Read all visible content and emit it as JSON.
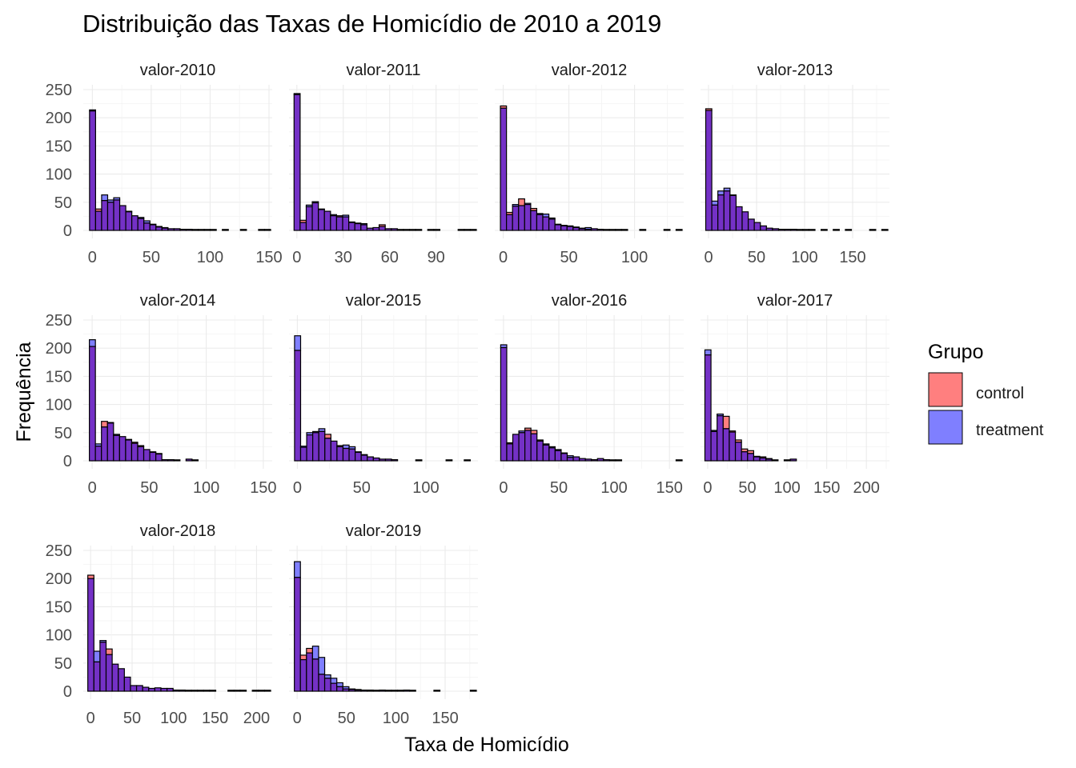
{
  "chart_data": {
    "type": "bar",
    "title": "Distribuição das Taxas de Homicídio de 2010 a 2019",
    "xlabel": "Taxa de Homicídio",
    "ylabel": "Frequência",
    "legend": {
      "title": "Grupo",
      "position": "right",
      "items": [
        {
          "name": "control",
          "color": "#FF7F7F"
        },
        {
          "name": "treatment",
          "color": "#7F7FFF"
        }
      ]
    },
    "overlap_color": "#7431C6",
    "grid": true,
    "ylim": [
      0,
      250
    ],
    "y_ticks": [
      0,
      50,
      100,
      150,
      200,
      250
    ],
    "bins_per_panel": 30,
    "panels": [
      {
        "label": "valor-2010",
        "x_ticks": [
          0,
          50,
          100,
          150
        ],
        "xlim": [
          -5,
          150
        ],
        "control": [
          212,
          38,
          53,
          50,
          54,
          44,
          34,
          26,
          21,
          13,
          10,
          6,
          4,
          3,
          3,
          2,
          2,
          1,
          1,
          1,
          1,
          0,
          1,
          0,
          0,
          1,
          0,
          0,
          1,
          1
        ],
        "treatment": [
          214,
          34,
          63,
          54,
          58,
          44,
          33,
          26,
          23,
          17,
          11,
          7,
          5,
          3,
          3,
          2,
          2,
          1,
          1,
          1,
          1,
          0,
          1,
          0,
          0,
          1,
          0,
          0,
          1,
          1
        ]
      },
      {
        "label": "valor-2011",
        "x_ticks": [
          0,
          30,
          60,
          90
        ],
        "xlim": [
          -3,
          115
        ],
        "control": [
          241,
          18,
          42,
          49,
          38,
          34,
          26,
          26,
          24,
          15,
          12,
          10,
          4,
          5,
          10,
          3,
          3,
          1,
          1,
          1,
          1,
          0,
          1,
          1,
          0,
          0,
          0,
          1,
          1,
          1
        ],
        "treatment": [
          243,
          14,
          45,
          51,
          37,
          34,
          28,
          24,
          27,
          14,
          13,
          12,
          4,
          5,
          7,
          3,
          3,
          1,
          1,
          1,
          1,
          0,
          1,
          1,
          0,
          0,
          0,
          1,
          1,
          1
        ],
        "x_scale_note": "axis 0-110"
      },
      {
        "label": "valor-2012",
        "x_ticks": [
          0,
          50,
          100
        ],
        "xlim": [
          -4,
          135
        ],
        "control": [
          221,
          32,
          43,
          56,
          46,
          39,
          28,
          24,
          20,
          10,
          8,
          7,
          5,
          3,
          2,
          3,
          2,
          1,
          1,
          1,
          1,
          0,
          0,
          1,
          0,
          0,
          0,
          1,
          0,
          1
        ],
        "treatment": [
          217,
          28,
          46,
          44,
          48,
          35,
          30,
          29,
          22,
          11,
          9,
          8,
          6,
          4,
          5,
          3,
          2,
          1,
          1,
          1,
          1,
          0,
          0,
          1,
          0,
          0,
          0,
          1,
          0,
          1
        ]
      },
      {
        "label": "valor-2013",
        "x_ticks": [
          0,
          50,
          100,
          150
        ],
        "xlim": [
          -5,
          185
        ],
        "control": [
          216,
          45,
          63,
          70,
          63,
          42,
          33,
          20,
          14,
          8,
          4,
          3,
          2,
          2,
          2,
          1,
          1,
          1,
          0,
          1,
          0,
          1,
          0,
          1,
          0,
          0,
          0,
          1,
          0,
          1
        ],
        "treatment": [
          213,
          52,
          70,
          75,
          62,
          42,
          33,
          20,
          14,
          8,
          4,
          3,
          2,
          2,
          2,
          1,
          1,
          1,
          0,
          1,
          0,
          1,
          0,
          1,
          0,
          0,
          0,
          1,
          0,
          1
        ]
      },
      {
        "label": "valor-2014",
        "x_ticks": [
          0,
          50,
          100,
          150
        ],
        "xlim": [
          -5,
          155
        ],
        "control": [
          203,
          26,
          70,
          67,
          45,
          43,
          38,
          33,
          27,
          20,
          15,
          13,
          2,
          2,
          1,
          0,
          3,
          1,
          0,
          0,
          0,
          0,
          0,
          0,
          0,
          0,
          0,
          0,
          0,
          0
        ],
        "treatment": [
          215,
          30,
          60,
          68,
          47,
          43,
          37,
          31,
          25,
          20,
          16,
          12,
          2,
          2,
          1,
          0,
          3,
          1,
          0,
          0,
          0,
          0,
          0,
          0,
          0,
          0,
          0,
          0,
          0,
          0
        ],
        "x_scale_note": "axis 0-150"
      },
      {
        "label": "valor-2015",
        "x_ticks": [
          0,
          50,
          100
        ],
        "xlim": [
          -4,
          138
        ],
        "control": [
          196,
          24,
          46,
          50,
          52,
          47,
          35,
          27,
          22,
          21,
          16,
          11,
          7,
          5,
          3,
          3,
          2,
          0,
          0,
          0,
          1,
          0,
          0,
          0,
          0,
          1,
          0,
          0,
          1,
          0
        ],
        "treatment": [
          222,
          26,
          50,
          52,
          57,
          40,
          35,
          25,
          28,
          25,
          15,
          10,
          7,
          5,
          3,
          3,
          2,
          0,
          0,
          0,
          1,
          0,
          0,
          0,
          0,
          1,
          0,
          0,
          1,
          0
        ]
      },
      {
        "label": "valor-2016",
        "x_ticks": [
          0,
          50,
          100,
          150
        ],
        "xlim": [
          -5,
          160
        ],
        "control": [
          201,
          32,
          47,
          50,
          58,
          54,
          37,
          28,
          23,
          18,
          13,
          6,
          7,
          4,
          3,
          2,
          4,
          2,
          1,
          1,
          0,
          0,
          0,
          0,
          0,
          0,
          0,
          0,
          0,
          1
        ],
        "treatment": [
          206,
          30,
          47,
          53,
          54,
          48,
          35,
          30,
          25,
          20,
          14,
          9,
          7,
          4,
          3,
          2,
          4,
          2,
          1,
          1,
          0,
          0,
          0,
          0,
          0,
          0,
          0,
          0,
          0,
          1
        ]
      },
      {
        "label": "valor-2017",
        "x_ticks": [
          0,
          50,
          100,
          150,
          200
        ],
        "xlim": [
          -5,
          225
        ],
        "control": [
          188,
          52,
          80,
          79,
          53,
          37,
          21,
          18,
          8,
          7,
          4,
          1,
          0,
          1,
          3,
          0,
          0,
          0,
          0,
          0,
          0,
          0,
          0,
          0,
          0,
          0,
          0,
          0,
          0,
          0
        ],
        "treatment": [
          197,
          54,
          83,
          57,
          51,
          33,
          16,
          13,
          7,
          5,
          3,
          1,
          0,
          1,
          3,
          0,
          0,
          0,
          0,
          0,
          0,
          0,
          0,
          0,
          0,
          0,
          0,
          0,
          0,
          0
        ]
      },
      {
        "label": "valor-2018",
        "x_ticks": [
          0,
          50,
          100,
          150,
          200
        ],
        "xlim": [
          -5,
          215
        ],
        "control": [
          206,
          52,
          87,
          75,
          48,
          40,
          25,
          10,
          10,
          7,
          5,
          6,
          5,
          5,
          2,
          2,
          1,
          1,
          1,
          1,
          1,
          0,
          0,
          1,
          1,
          1,
          0,
          1,
          1,
          1
        ],
        "treatment": [
          200,
          71,
          90,
          65,
          48,
          40,
          25,
          10,
          10,
          7,
          5,
          6,
          5,
          5,
          2,
          2,
          1,
          1,
          1,
          1,
          1,
          0,
          0,
          1,
          1,
          1,
          0,
          1,
          1,
          1
        ]
      },
      {
        "label": "valor-2019",
        "x_ticks": [
          0,
          50,
          100,
          150
        ],
        "xlim": [
          -5,
          180
        ],
        "control": [
          202,
          64,
          76,
          57,
          30,
          23,
          14,
          8,
          4,
          3,
          2,
          2,
          1,
          1,
          2,
          1,
          1,
          1,
          2,
          1,
          0,
          0,
          0,
          1,
          0,
          0,
          0,
          0,
          0,
          1
        ],
        "treatment": [
          230,
          56,
          68,
          80,
          60,
          29,
          23,
          15,
          8,
          4,
          3,
          2,
          2,
          1,
          2,
          1,
          1,
          1,
          2,
          1,
          0,
          0,
          0,
          1,
          0,
          0,
          0,
          0,
          0,
          1
        ]
      }
    ]
  }
}
